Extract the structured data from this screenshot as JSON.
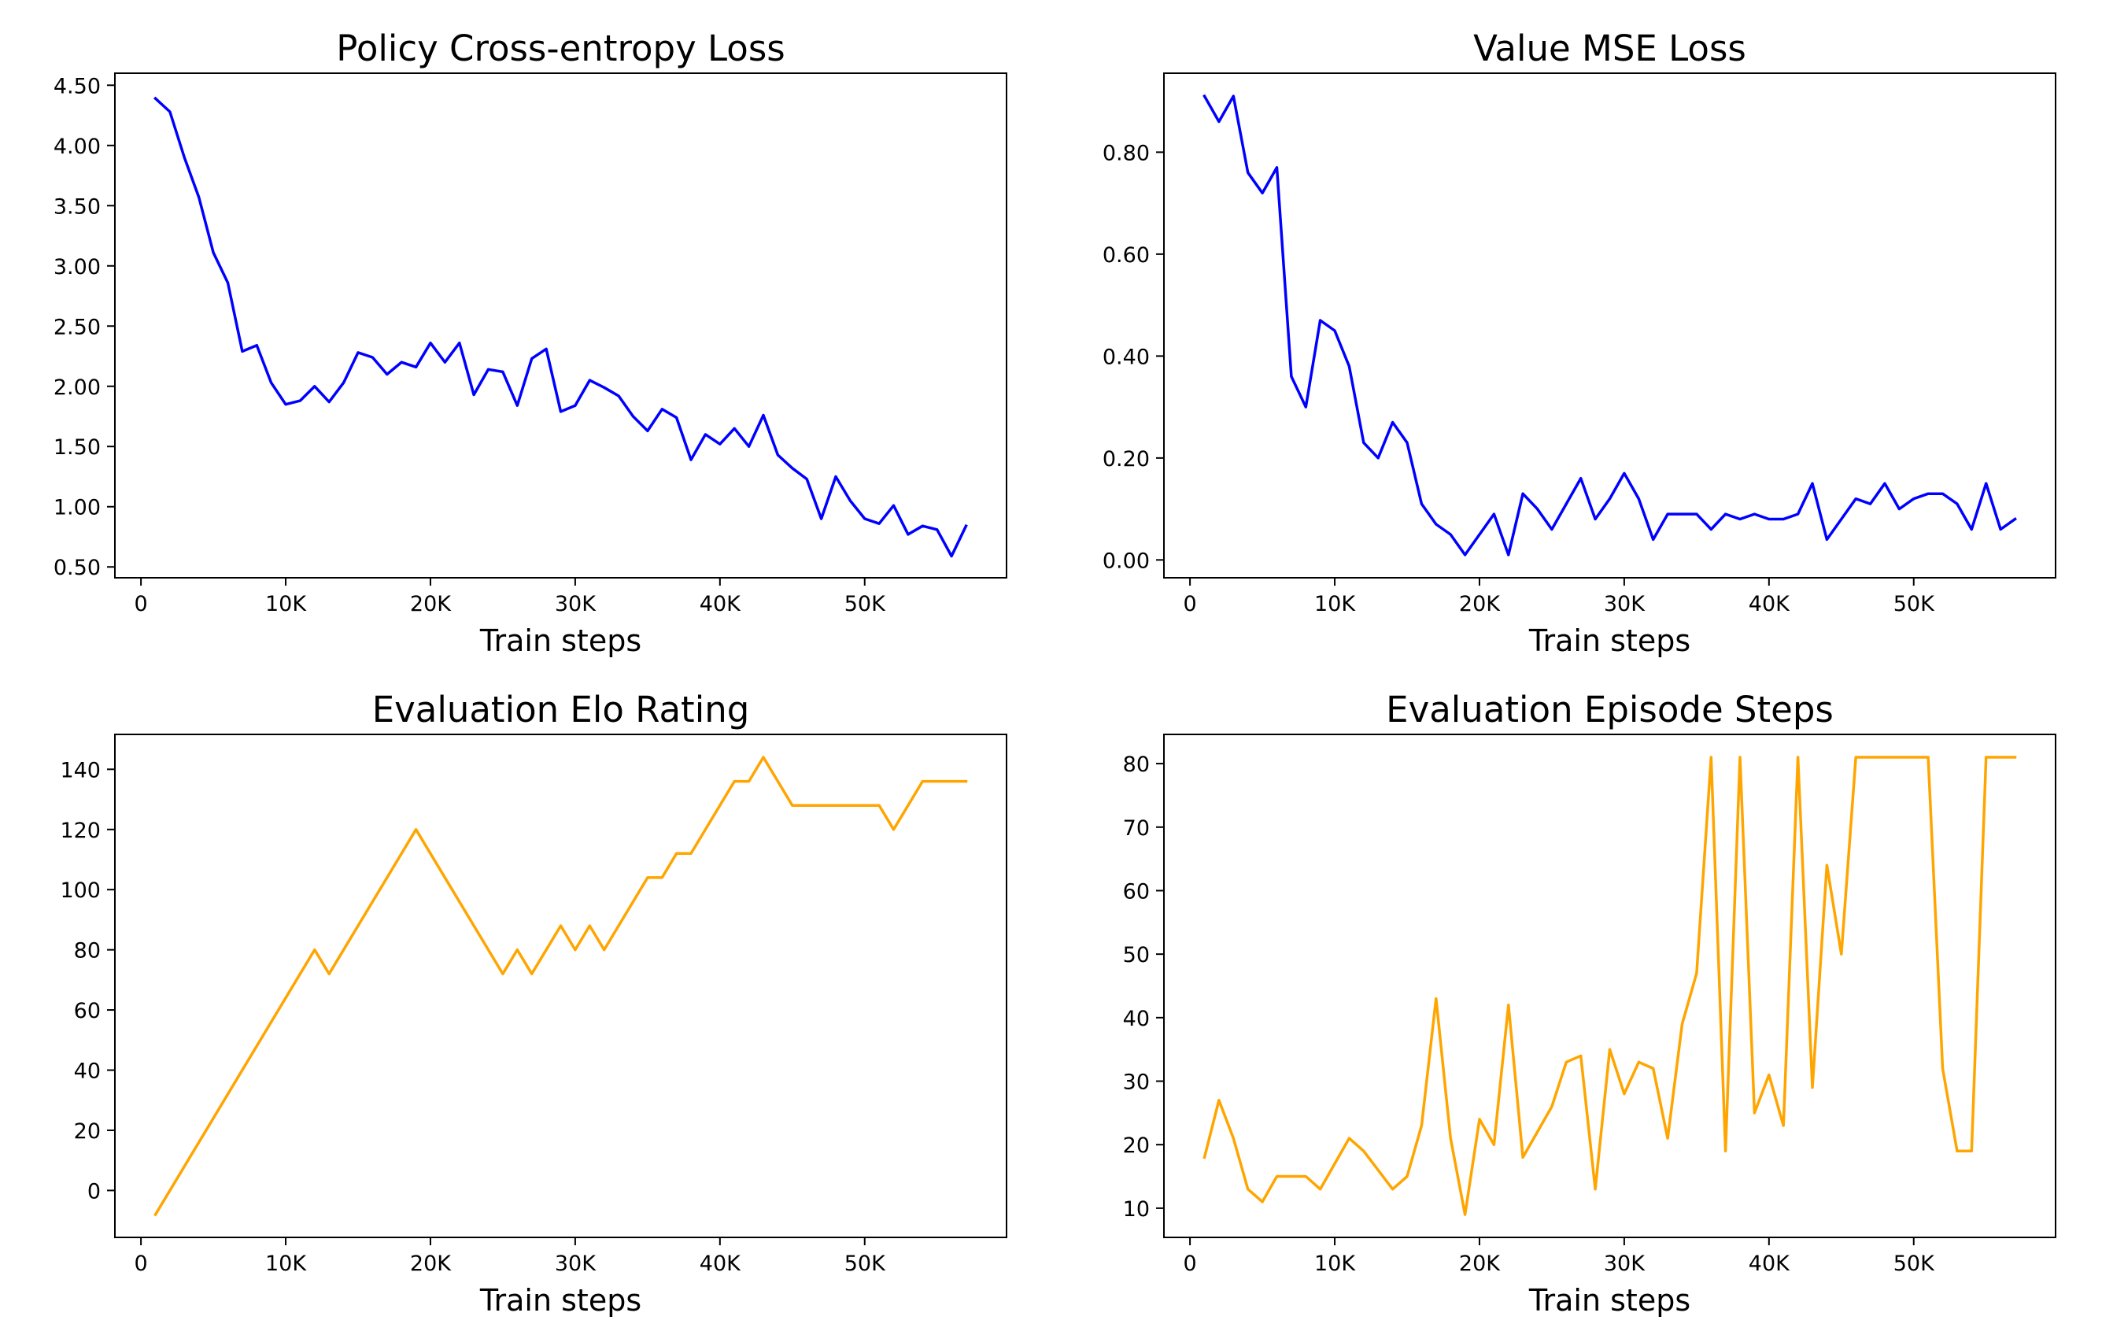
{
  "chart_data": [
    {
      "type": "line",
      "title": "Policy Cross-entropy Loss",
      "xlabel": "Train steps",
      "ylabel": "",
      "xlim": [
        -1800,
        59800
      ],
      "ylim": [
        0.41,
        4.6
      ],
      "xticks": [
        0,
        10000,
        20000,
        30000,
        40000,
        50000
      ],
      "xtick_labels": [
        "0",
        "10K",
        "20K",
        "30K",
        "40K",
        "50K"
      ],
      "yticks": [
        0.5,
        1.0,
        1.5,
        2.0,
        2.5,
        3.0,
        3.5,
        4.0,
        4.5
      ],
      "ytick_labels": [
        "0.50",
        "1.00",
        "1.50",
        "2.00",
        "2.50",
        "3.00",
        "3.50",
        "4.00",
        "4.50"
      ],
      "grid": false,
      "series": [
        {
          "color": "#0000ff",
          "x": [
            1000,
            2000,
            3000,
            4000,
            5000,
            6000,
            7000,
            8000,
            9000,
            10000,
            11000,
            12000,
            13000,
            14000,
            15000,
            16000,
            17000,
            18000,
            19000,
            20000,
            21000,
            22000,
            23000,
            24000,
            25000,
            26000,
            27000,
            28000,
            29000,
            30000,
            31000,
            32000,
            33000,
            34000,
            35000,
            36000,
            37000,
            38000,
            39000,
            40000,
            41000,
            42000,
            43000,
            44000,
            45000,
            46000,
            47000,
            48000,
            49000,
            50000,
            51000,
            52000,
            53000,
            54000,
            55000,
            56000,
            57000
          ],
          "values": [
            4.39,
            4.28,
            3.9,
            3.57,
            3.11,
            2.86,
            2.29,
            2.34,
            2.03,
            1.85,
            1.88,
            2.0,
            1.87,
            2.03,
            2.28,
            2.24,
            2.1,
            2.2,
            2.16,
            2.36,
            2.2,
            2.36,
            1.93,
            2.14,
            2.12,
            1.84,
            2.23,
            2.31,
            1.79,
            1.84,
            2.05,
            1.99,
            1.92,
            1.75,
            1.63,
            1.81,
            1.74,
            1.39,
            1.6,
            1.52,
            1.65,
            1.5,
            1.76,
            1.43,
            1.32,
            1.23,
            0.9,
            1.25,
            1.05,
            0.9,
            0.86,
            1.01,
            0.77,
            0.84,
            0.81,
            0.59,
            0.84
          ]
        }
      ]
    },
    {
      "type": "line",
      "title": "Value MSE Loss",
      "xlabel": "Train steps",
      "ylabel": "",
      "xlim": [
        -1800,
        59800
      ],
      "ylim": [
        -0.035,
        0.955
      ],
      "xticks": [
        0,
        10000,
        20000,
        30000,
        40000,
        50000
      ],
      "xtick_labels": [
        "0",
        "10K",
        "20K",
        "30K",
        "40K",
        "50K"
      ],
      "yticks": [
        0.0,
        0.2,
        0.4,
        0.6,
        0.8
      ],
      "ytick_labels": [
        "0.00",
        "0.20",
        "0.40",
        "0.60",
        "0.80"
      ],
      "grid": false,
      "series": [
        {
          "color": "#0000ff",
          "x": [
            1000,
            2000,
            3000,
            4000,
            5000,
            6000,
            7000,
            8000,
            9000,
            10000,
            11000,
            12000,
            13000,
            14000,
            15000,
            16000,
            17000,
            18000,
            19000,
            20000,
            21000,
            22000,
            23000,
            24000,
            25000,
            26000,
            27000,
            28000,
            29000,
            30000,
            31000,
            32000,
            33000,
            34000,
            35000,
            36000,
            37000,
            38000,
            39000,
            40000,
            41000,
            42000,
            43000,
            44000,
            45000,
            46000,
            47000,
            48000,
            49000,
            50000,
            51000,
            52000,
            53000,
            54000,
            55000,
            56000,
            57000
          ],
          "values": [
            0.91,
            0.86,
            0.91,
            0.76,
            0.72,
            0.77,
            0.36,
            0.3,
            0.47,
            0.45,
            0.38,
            0.23,
            0.2,
            0.27,
            0.23,
            0.11,
            0.07,
            0.05,
            0.01,
            0.05,
            0.09,
            0.01,
            0.13,
            0.1,
            0.06,
            0.11,
            0.16,
            0.08,
            0.12,
            0.17,
            0.12,
            0.04,
            0.09,
            0.09,
            0.09,
            0.06,
            0.09,
            0.08,
            0.09,
            0.08,
            0.08,
            0.09,
            0.15,
            0.04,
            0.08,
            0.12,
            0.11,
            0.15,
            0.1,
            0.12,
            0.13,
            0.13,
            0.11,
            0.06,
            0.15,
            0.06,
            0.08
          ]
        }
      ]
    },
    {
      "type": "line",
      "title": "Evaluation Elo Rating",
      "xlabel": "Train steps",
      "ylabel": "",
      "xlim": [
        -1800,
        59800
      ],
      "ylim": [
        -15.6,
        151.6
      ],
      "xticks": [
        0,
        10000,
        20000,
        30000,
        40000,
        50000
      ],
      "xtick_labels": [
        "0",
        "10K",
        "20K",
        "30K",
        "40K",
        "50K"
      ],
      "yticks": [
        0,
        20,
        40,
        60,
        80,
        100,
        120,
        140
      ],
      "ytick_labels": [
        "0",
        "20",
        "40",
        "60",
        "80",
        "100",
        "120",
        "140"
      ],
      "grid": false,
      "series": [
        {
          "color": "#ffa500",
          "x": [
            1000,
            12000,
            13000,
            19000,
            25000,
            26000,
            27000,
            29000,
            30000,
            31000,
            32000,
            35000,
            36000,
            37000,
            38000,
            41000,
            42000,
            43000,
            45000,
            51000,
            52000,
            54000,
            57000
          ],
          "values": [
            -8,
            80,
            72,
            120,
            72,
            80,
            72,
            88,
            80,
            88,
            80,
            104,
            104,
            112,
            112,
            136,
            136,
            144,
            128,
            128,
            120,
            136,
            136
          ]
        }
      ]
    },
    {
      "type": "line",
      "title": "Evaluation Episode Steps",
      "xlabel": "Train steps",
      "ylabel": "",
      "xlim": [
        -1800,
        59800
      ],
      "ylim": [
        5.4,
        84.6
      ],
      "xticks": [
        0,
        10000,
        20000,
        30000,
        40000,
        50000
      ],
      "xtick_labels": [
        "0",
        "10K",
        "20K",
        "30K",
        "40K",
        "50K"
      ],
      "yticks": [
        10,
        20,
        30,
        40,
        50,
        60,
        70,
        80
      ],
      "ytick_labels": [
        "10",
        "20",
        "30",
        "40",
        "50",
        "60",
        "70",
        "80"
      ],
      "grid": false,
      "series": [
        {
          "color": "#ffa500",
          "x": [
            1000,
            2000,
            3000,
            4000,
            5000,
            6000,
            7000,
            8000,
            9000,
            10000,
            11000,
            12000,
            13000,
            14000,
            15000,
            16000,
            17000,
            18000,
            19000,
            20000,
            21000,
            22000,
            23000,
            24000,
            25000,
            26000,
            27000,
            28000,
            29000,
            30000,
            31000,
            32000,
            33000,
            34000,
            35000,
            36000,
            37000,
            38000,
            39000,
            40000,
            41000,
            42000,
            43000,
            44000,
            45000,
            46000,
            47000,
            48000,
            49000,
            50000,
            51000,
            52000,
            53000,
            54000,
            55000,
            56000,
            57000
          ],
          "values": [
            18,
            27,
            21,
            13,
            11,
            15,
            15,
            15,
            13,
            17,
            21,
            19,
            16,
            13,
            15,
            23,
            43,
            21,
            9,
            24,
            20,
            42,
            18,
            22,
            26,
            33,
            34,
            13,
            35,
            28,
            33,
            32,
            21,
            39,
            47,
            81,
            19,
            81,
            25,
            31,
            23,
            81,
            29,
            64,
            50,
            81,
            81,
            81,
            81,
            81,
            81,
            32,
            19,
            19,
            81,
            81,
            81
          ]
        }
      ]
    }
  ]
}
